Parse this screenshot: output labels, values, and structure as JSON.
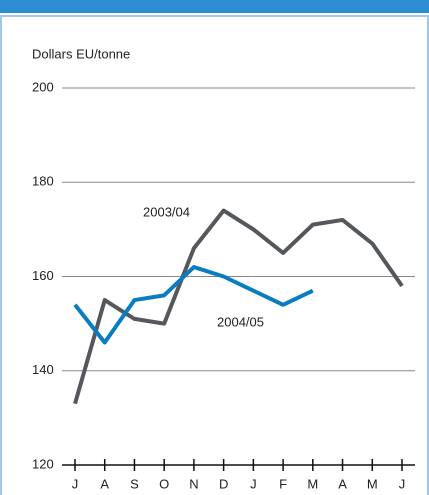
{
  "chart_data": {
    "type": "line",
    "y_axis_label": "Dollars EU/tonne",
    "categories": [
      "J",
      "A",
      "S",
      "O",
      "N",
      "D",
      "J",
      "F",
      "M",
      "A",
      "M",
      "J"
    ],
    "series": [
      {
        "name": "2003/04",
        "color": "#54585c",
        "values": [
          133,
          155,
          151,
          150,
          166,
          174,
          170,
          165,
          171,
          172,
          167,
          158
        ]
      },
      {
        "name": "2004/05",
        "color": "#0a7cc2",
        "values": [
          154,
          146,
          155,
          156,
          162,
          160,
          157,
          154,
          157,
          null,
          null,
          null
        ]
      }
    ],
    "ylim": [
      120,
      200
    ],
    "yticks": [
      120,
      140,
      160,
      180,
      200
    ],
    "grid": true
  }
}
